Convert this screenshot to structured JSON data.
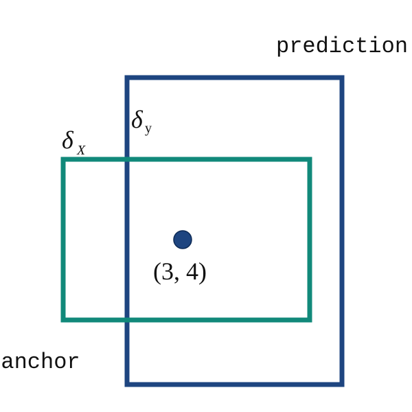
{
  "labels": {
    "prediction": "prediction",
    "anchor": "anchor",
    "center_point": "(3, 4)",
    "delta_x_symbol": "δ",
    "delta_x_subscript": "X",
    "delta_y_symbol": "δ",
    "delta_y_subscript": "y"
  },
  "colors": {
    "prediction_box": "#1e4580",
    "anchor_box": "#11897a",
    "center_point_fill": "#1e4580",
    "text": "#111111"
  }
}
